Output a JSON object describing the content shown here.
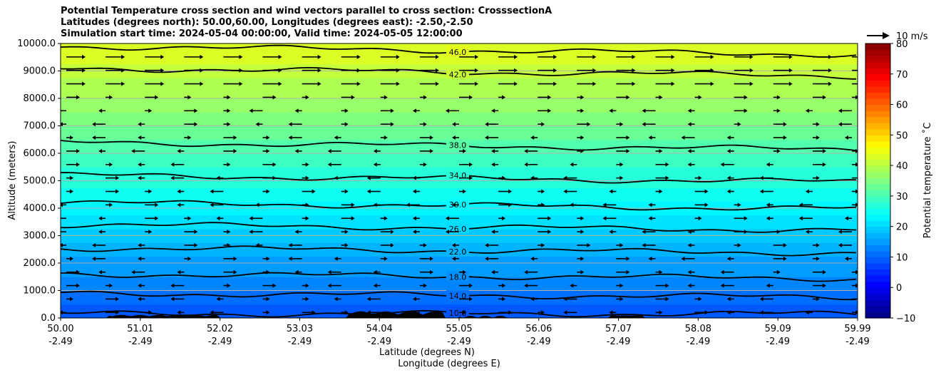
{
  "chart_data": {
    "type": "contour",
    "title_lines": [
      "Potential Temperature cross section and wind vectors parallel to cross section: CrosssectionA",
      "Latitudes (degrees north): 50.00,60.00, Longitudes (degrees east): -2.50,-2.50",
      "Simulation start time: 2024-05-04 00:00:00, Valid time: 2024-05-05 12:00:00"
    ],
    "ylabel": "Altitude (meters)",
    "xlabel_lines": [
      "Latitude (degrees N)",
      "Longitude (degrees E)"
    ],
    "ylim": [
      0,
      10000
    ],
    "y_ticks": [
      "0.0",
      "1000.0",
      "2000.0",
      "3000.0",
      "4000.0",
      "5000.0",
      "6000.0",
      "7000.0",
      "8000.0",
      "9000.0",
      "10000.0"
    ],
    "x_ticks": [
      {
        "lat": "50.00",
        "lon": "-2.49"
      },
      {
        "lat": "51.01",
        "lon": "-2.49"
      },
      {
        "lat": "52.02",
        "lon": "-2.49"
      },
      {
        "lat": "53.03",
        "lon": "-2.49"
      },
      {
        "lat": "54.04",
        "lon": "-2.49"
      },
      {
        "lat": "55.05",
        "lon": "-2.49"
      },
      {
        "lat": "56.06",
        "lon": "-2.49"
      },
      {
        "lat": "57.07",
        "lon": "-2.49"
      },
      {
        "lat": "58.08",
        "lon": "-2.49"
      },
      {
        "lat": "59.09",
        "lon": "-2.49"
      },
      {
        "lat": "59.99",
        "lon": "-2.49"
      }
    ],
    "grid": "horizontal",
    "contour_labels": [
      {
        "label": "10.0",
        "altitude": 150
      },
      {
        "label": "14.0",
        "altitude": 900
      },
      {
        "label": "18.0",
        "altitude": 1600
      },
      {
        "label": "22.0",
        "altitude": 2550
      },
      {
        "label": "26.0",
        "altitude": 3400
      },
      {
        "label": "30.0",
        "altitude": 4200
      },
      {
        "label": "34.0",
        "altitude": 5200
      },
      {
        "label": "38.0",
        "altitude": 6400
      },
      {
        "label": "42.0",
        "altitude": 9100
      },
      {
        "label": "46.0",
        "altitude": 9900
      }
    ],
    "colorbar": {
      "label": "Potential temperature $^\\circ$C",
      "label_display": "Potential temperature ˚C",
      "min": -10,
      "max": 80,
      "ticks": [
        "−10",
        "0",
        "10",
        "20",
        "30",
        "40",
        "50",
        "60",
        "70",
        "80"
      ]
    },
    "quiver_key": {
      "label": "10 m/s",
      "speed": 10
    },
    "colors": {
      "contour": "#000000",
      "terrain": "#000000",
      "grid": "#b0b0b0"
    }
  }
}
